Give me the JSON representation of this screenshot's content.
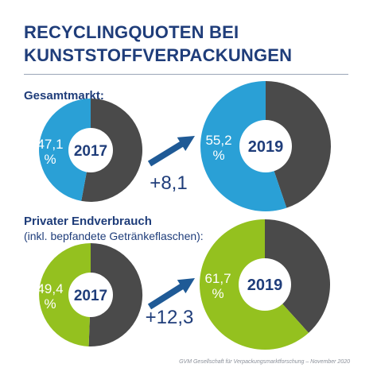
{
  "title": {
    "line1": "RECYCLINGQUOTEN BEI",
    "line2": "KUNSTSTOFFVERPACKUNGEN"
  },
  "colors": {
    "navy": "#1f3d7a",
    "dark": "#4a4a4a",
    "blue": "#2aa0d6",
    "green": "#94c11f",
    "arrow": "#1f5a96"
  },
  "chart_data": [
    {
      "type": "pie",
      "group": "Gesamtmarkt:",
      "subtitle": "",
      "accent": "blue",
      "before": {
        "year": "2017",
        "value": 47.1,
        "label": "47,1 %"
      },
      "after": {
        "year": "2019",
        "value": 55.2,
        "label": "55,2 %"
      },
      "change": "+8,1"
    },
    {
      "type": "pie",
      "group": "Privater Endverbrauch",
      "subtitle": "(inkl. bepfandete Getränkeflaschen):",
      "accent": "green",
      "before": {
        "year": "2017",
        "value": 49.4,
        "label": "49,4 %"
      },
      "after": {
        "year": "2019",
        "value": 61.7,
        "label": "61,7 %"
      },
      "change": "+12,3"
    }
  ],
  "source": "GVM Gesellschaft für Verpackungsmarktforschung – November 2020"
}
